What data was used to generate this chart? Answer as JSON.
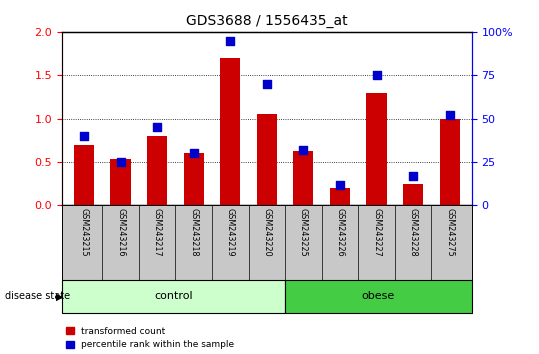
{
  "title": "GDS3688 / 1556435_at",
  "samples": [
    "GSM243215",
    "GSM243216",
    "GSM243217",
    "GSM243218",
    "GSM243219",
    "GSM243220",
    "GSM243225",
    "GSM243226",
    "GSM243227",
    "GSM243228",
    "GSM243275"
  ],
  "red_values": [
    0.7,
    0.53,
    0.8,
    0.6,
    1.7,
    1.05,
    0.63,
    0.2,
    1.3,
    0.25,
    1.0
  ],
  "blue_pct": [
    40,
    25,
    45,
    30,
    95,
    70,
    32,
    12,
    75,
    17,
    52
  ],
  "ylim_left": [
    0,
    2
  ],
  "ylim_right": [
    0,
    100
  ],
  "yticks_left": [
    0,
    0.5,
    1.0,
    1.5,
    2.0
  ],
  "yticks_right": [
    0,
    25,
    50,
    75,
    100
  ],
  "control_count": 6,
  "obese_count": 5,
  "control_label": "control",
  "obese_label": "obese",
  "disease_state_label": "disease state",
  "legend_red": "transformed count",
  "legend_blue": "percentile rank within the sample",
  "bar_color": "#cc0000",
  "dot_color": "#0000cc",
  "control_fill": "#ccffcc",
  "obese_fill": "#44cc44",
  "tick_area_fill": "#c8c8c8",
  "bar_width": 0.55,
  "dot_size": 28
}
